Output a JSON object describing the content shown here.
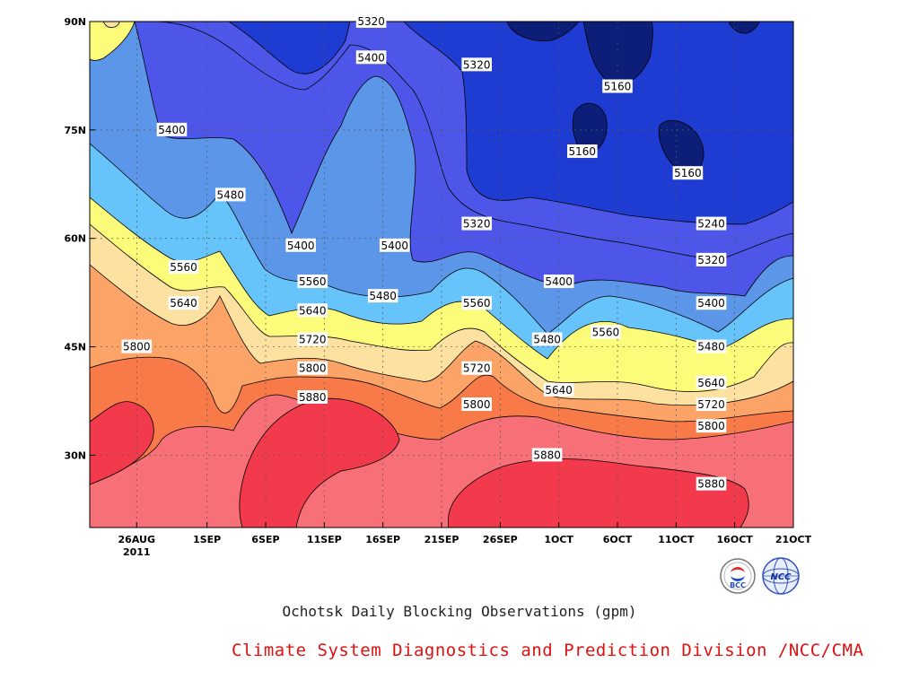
{
  "chart_data": {
    "type": "contour",
    "title": "Ochotsk Daily Blocking Observations (gpm)",
    "x_ticks": [
      "26AUG",
      "1SEP",
      "6SEP",
      "11SEP",
      "16SEP",
      "21SEP",
      "26SEP",
      "1OCT",
      "6OCT",
      "11OCT",
      "16OCT",
      "21OCT"
    ],
    "x_year_label": "2011",
    "y_ticks": [
      "90N",
      "75N",
      "60N",
      "45N",
      "30N"
    ],
    "y_values": [
      90,
      75,
      60,
      45,
      30
    ],
    "xlim": [
      "2011-08-22",
      "2011-10-21"
    ],
    "ylim": [
      20,
      90
    ],
    "grid": true,
    "levels": [
      5160,
      5240,
      5320,
      5400,
      5480,
      5560,
      5640,
      5720,
      5800,
      5880
    ],
    "contour_labels": [
      {
        "date": "2011-09-15",
        "lat": 90,
        "value": "5320"
      },
      {
        "date": "2011-09-15",
        "lat": 85,
        "value": "5400"
      },
      {
        "date": "2011-09-24",
        "lat": 84,
        "value": "5320"
      },
      {
        "date": "2011-10-06",
        "lat": 81,
        "value": "5160"
      },
      {
        "date": "2011-08-29",
        "lat": 75,
        "value": "5400"
      },
      {
        "date": "2011-10-03",
        "lat": 72,
        "value": "5160"
      },
      {
        "date": "2011-10-12",
        "lat": 69,
        "value": "5160"
      },
      {
        "date": "2011-09-03",
        "lat": 66,
        "value": "5480"
      },
      {
        "date": "2011-09-24",
        "lat": 62,
        "value": "5320"
      },
      {
        "date": "2011-10-14",
        "lat": 62,
        "value": "5240"
      },
      {
        "date": "2011-09-09",
        "lat": 59,
        "value": "5400"
      },
      {
        "date": "2011-09-17",
        "lat": 59,
        "value": "5400"
      },
      {
        "date": "2011-10-14",
        "lat": 57,
        "value": "5320"
      },
      {
        "date": "2011-08-30",
        "lat": 56,
        "value": "5560"
      },
      {
        "date": "2011-09-10",
        "lat": 54,
        "value": "5560"
      },
      {
        "date": "2011-10-01",
        "lat": 54,
        "value": "5400"
      },
      {
        "date": "2011-09-16",
        "lat": 52,
        "value": "5480"
      },
      {
        "date": "2011-09-24",
        "lat": 51,
        "value": "5560"
      },
      {
        "date": "2011-08-30",
        "lat": 51,
        "value": "5640"
      },
      {
        "date": "2011-10-14",
        "lat": 51,
        "value": "5400"
      },
      {
        "date": "2011-09-10",
        "lat": 50,
        "value": "5640"
      },
      {
        "date": "2011-10-05",
        "lat": 47,
        "value": "5560"
      },
      {
        "date": "2011-09-10",
        "lat": 46,
        "value": "5720"
      },
      {
        "date": "2011-09-30",
        "lat": 46,
        "value": "5480"
      },
      {
        "date": "2011-08-26",
        "lat": 45,
        "value": "5800"
      },
      {
        "date": "2011-10-14",
        "lat": 45,
        "value": "5480"
      },
      {
        "date": "2011-09-24",
        "lat": 42,
        "value": "5720"
      },
      {
        "date": "2011-09-10",
        "lat": 42,
        "value": "5800"
      },
      {
        "date": "2011-10-01",
        "lat": 39,
        "value": "5640"
      },
      {
        "date": "2011-10-14",
        "lat": 40,
        "value": "5640"
      },
      {
        "date": "2011-09-10",
        "lat": 38,
        "value": "5880"
      },
      {
        "date": "2011-09-24",
        "lat": 37,
        "value": "5800"
      },
      {
        "date": "2011-10-14",
        "lat": 37,
        "value": "5720"
      },
      {
        "date": "2011-10-14",
        "lat": 34,
        "value": "5800"
      },
      {
        "date": "2011-09-30",
        "lat": 30,
        "value": "5880"
      },
      {
        "date": "2011-10-14",
        "lat": 26,
        "value": "5880"
      }
    ]
  },
  "colors": {
    "lt5160": "#0c1e78",
    "c5160": "#1e3cd2",
    "c5240": "#4d56e8",
    "c5320": "#5c96e8",
    "c5400": "#66c4fa",
    "c5480": "#fcfc7a",
    "c5560": "#fce1a0",
    "c5640": "#fca468",
    "c5720": "#f77a48",
    "c5800": "#f77078",
    "c5880": "#f23a4c",
    "org_text": "#e01010"
  },
  "footer": {
    "title": "Ochotsk Daily Blocking Observations (gpm)",
    "organization": "Climate System Diagnostics and Prediction Division /NCC/CMA"
  },
  "logos": {
    "left_text": "BCC",
    "right_text": "NCC"
  }
}
